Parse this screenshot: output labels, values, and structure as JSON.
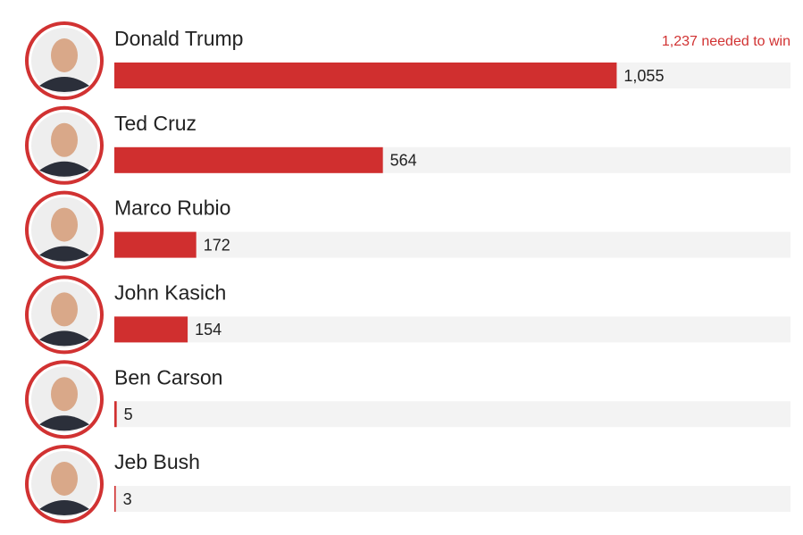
{
  "chart_data": {
    "type": "bar",
    "orientation": "horizontal",
    "annotation": "1,237 needed to win",
    "categories": [
      "Donald Trump",
      "Ted Cruz",
      "Marco Rubio",
      "John Kasich",
      "Ben Carson",
      "Jeb Bush"
    ],
    "values": [
      1055,
      564,
      172,
      154,
      5,
      3
    ],
    "value_labels": [
      "1,055",
      "564",
      "172",
      "154",
      "5",
      "3"
    ],
    "color": "#d02f2f",
    "xlim": [
      0,
      1420
    ]
  }
}
